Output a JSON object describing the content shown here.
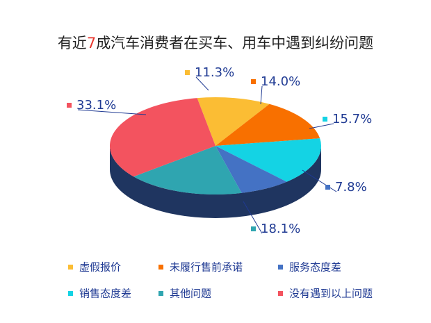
{
  "chart_data": {
    "type": "pie3d",
    "title": [
      "有近",
      "7",
      "成汽车消费者在买车、用车中遇到纠纷问题"
    ],
    "title_highlight_color": "#e8362d",
    "categories": [
      "虚假报价",
      "未履行售前承诺",
      "销售态度差",
      "服务态度差",
      "其他问题",
      "没有遇到以上问题"
    ],
    "values": [
      11.3,
      14.0,
      15.7,
      7.8,
      18.1,
      33.1
    ],
    "value_labels": [
      "11.3%",
      "14.0%",
      "15.7%",
      "7.8%",
      "18.1%",
      "33.1%"
    ],
    "colors": [
      "#fbbd34",
      "#f87000",
      "#14d3e4",
      "#4472c4",
      "#2fa5b0",
      "#f3535f"
    ],
    "side_color": "#1f3560",
    "label_color": "#1f3a93"
  }
}
